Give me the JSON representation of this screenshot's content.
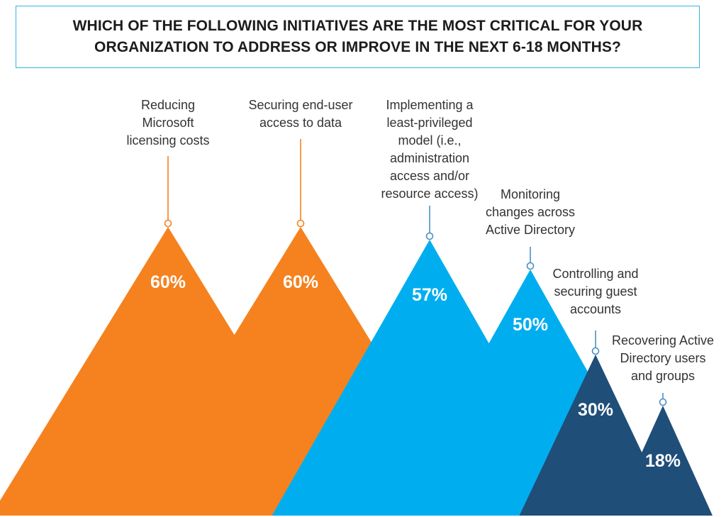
{
  "chart_data": {
    "type": "bar",
    "title": "WHICH OF THE FOLLOWING INITIATIVES ARE THE MOST CRITICAL FOR YOUR\nORGANIZATION TO ADDRESS OR IMPROVE IN THE NEXT 6-18 MONTHS?",
    "xlabel": "",
    "ylabel": "",
    "ylim": [
      0,
      100
    ],
    "grid": false,
    "legend": "none",
    "colors": {
      "orange": "#f5821f",
      "light_blue": "#00aeef",
      "dark_blue": "#1f4e79",
      "stem_blue": "#4a8fc4"
    },
    "categories": [
      "Reducing Microsoft licensing costs",
      "Securing end-user access to data",
      "Implementing a least-privileged model (i.e., administration access and/or resource access)",
      "Monitoring changes across Active Directory",
      "Controlling and securing guest accounts",
      "Recovering Active Directory users and groups"
    ],
    "values": [
      60,
      60,
      57,
      50,
      30,
      18
    ],
    "value_labels": [
      "60%",
      "60%",
      "57%",
      "50%",
      "30%",
      "18%"
    ],
    "category_label_lines": [
      [
        "Reducing",
        "Microsoft",
        "licensing costs"
      ],
      [
        "Securing end-user",
        "access to data"
      ],
      [
        "Implementing a",
        "least-privileged",
        "model (i.e.,",
        "administration",
        "access and/or",
        "resource access)"
      ],
      [
        "Monitoring",
        "changes across",
        "Active Directory"
      ],
      [
        "Controlling and",
        "securing guest",
        "accounts"
      ],
      [
        "Recovering Active",
        "Directory users",
        "and groups"
      ]
    ],
    "bar_colors": [
      "orange",
      "orange",
      "light_blue",
      "light_blue",
      "dark_blue",
      "dark_blue"
    ]
  }
}
